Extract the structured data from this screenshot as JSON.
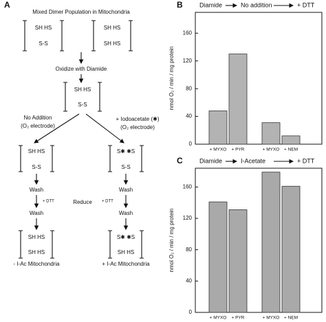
{
  "diagram": {
    "panel": "A",
    "texts": [
      "Mixed Dimer Population in Mitochondria",
      "SH HS",
      "S-S",
      "SH HS",
      "SH HS",
      "Oxidize with Diamide",
      "SH HS",
      "S-S",
      "No Addition",
      "(O₂ electrode)",
      "+ Iodoacetate (✱)",
      "(O₂ electrode)",
      "SH HS",
      "S-S",
      "Wash",
      "+ DTT",
      "Wash",
      "SH HS",
      "SH HS",
      "- I-Ac Mitochondria",
      "Reduce",
      "S✱ ✱S",
      "S-S",
      "Wash",
      "+ DTT",
      "Wash",
      "S✱ ✱S",
      "SH HS",
      "+ I-Ac Mitochondria"
    ]
  },
  "chart_data": [
    {
      "type": "bar",
      "panel": "B",
      "title_parts": [
        "Diamide",
        "No addition",
        "+ DTT"
      ],
      "y_label": "nmol O₂ / min / mg protein",
      "categories": [
        "+ MYXO",
        "+ PYR",
        "+ MYXO",
        "+ NEM"
      ],
      "values": [
        48,
        130,
        31,
        12
      ],
      "color": "#b3b3b3",
      "ylim": [
        0,
        190
      ],
      "yticks": [
        0,
        40,
        80,
        120,
        160
      ]
    },
    {
      "type": "bar",
      "panel": "C",
      "title_parts": [
        "Diamide",
        "I-Acetate",
        "+ DTT"
      ],
      "y_label": "nmol O₂ / min / mg protein",
      "categories": [
        "+ MYXO",
        "+ PYR",
        "+ MYXO",
        "+ NEM"
      ],
      "values": [
        141,
        131,
        179,
        161
      ],
      "color": "#a9a9a9",
      "ylim": [
        0,
        184
      ],
      "yticks": [
        0,
        40,
        80,
        120,
        160
      ]
    }
  ]
}
